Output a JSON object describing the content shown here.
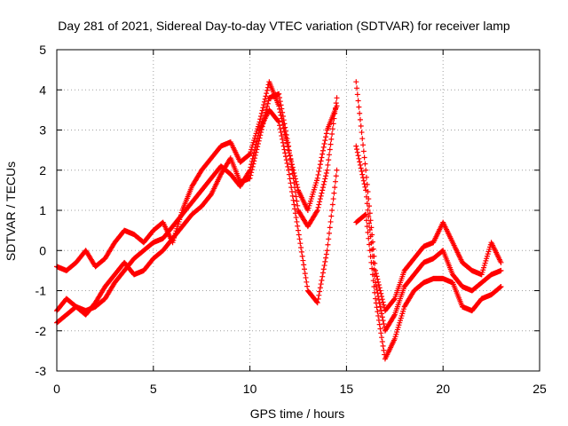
{
  "chart_data": {
    "type": "scatter",
    "title": "Day 281 of 2021, Sidereal Day-to-day VTEC variation (SDTVAR) for receiver lamp",
    "xlabel": "GPS time / hours",
    "ylabel": "SDTVAR / TECUs",
    "xlim": [
      0,
      25
    ],
    "ylim": [
      -3,
      5
    ],
    "xticks": [
      "0",
      "5",
      "10",
      "15",
      "20",
      "25"
    ],
    "yticks": [
      "-3",
      "-2",
      "-1",
      "0",
      "1",
      "2",
      "3",
      "4",
      "5"
    ],
    "grid": true,
    "marker": "+",
    "color": "#ff0000",
    "series": [
      {
        "x": [
          0.0,
          0.5,
          1.0,
          1.5,
          2.0,
          2.5,
          3.0,
          3.5,
          4.0,
          4.5,
          5.0,
          5.5,
          6.0,
          6.5,
          7.0,
          7.5,
          8.0,
          8.5,
          9.0,
          9.5,
          10.0,
          10.5,
          11.0,
          11.5,
          12.0,
          12.5,
          13.0,
          13.5,
          14.0,
          14.5
        ],
        "y": [
          -1.8,
          -1.6,
          -1.4,
          -1.5,
          -1.4,
          -1.2,
          -0.8,
          -0.5,
          -0.2,
          0.0,
          0.2,
          0.3,
          0.6,
          0.9,
          1.2,
          1.5,
          1.8,
          2.1,
          1.9,
          1.6,
          2.0,
          3.0,
          3.5,
          3.2,
          2.0,
          0.5,
          -1.0,
          -1.3,
          0.0,
          2.0
        ]
      },
      {
        "x": [
          0.0,
          0.5,
          1.0,
          1.5,
          2.0,
          2.5,
          3.0,
          3.5,
          4.0,
          4.5,
          5.0,
          5.5,
          6.0,
          6.5,
          7.0,
          7.5,
          8.0,
          8.5,
          9.0,
          9.5,
          10.0,
          10.5,
          11.0,
          11.5,
          12.0,
          12.5,
          13.0,
          13.5,
          14.0,
          14.5
        ],
        "y": [
          -1.5,
          -1.2,
          -1.4,
          -1.6,
          -1.3,
          -0.9,
          -0.6,
          -0.3,
          -0.6,
          -0.5,
          -0.2,
          0.0,
          0.3,
          0.6,
          0.9,
          1.1,
          1.4,
          1.9,
          2.3,
          1.7,
          1.8,
          2.8,
          3.8,
          3.9,
          2.6,
          1.0,
          0.6,
          1.0,
          2.0,
          3.8
        ]
      },
      {
        "x": [
          0.0,
          0.5,
          1.0,
          1.5,
          2.0,
          2.5,
          3.0,
          3.5,
          4.0,
          4.5,
          5.0,
          5.5,
          6.0,
          6.5,
          7.0,
          7.5,
          8.0,
          8.5,
          9.0,
          9.5,
          10.0,
          10.5,
          11.0,
          11.5,
          12.0,
          12.5,
          13.0,
          13.5,
          14.0,
          14.5
        ],
        "y": [
          -0.4,
          -0.5,
          -0.3,
          0.0,
          -0.4,
          -0.2,
          0.2,
          0.5,
          0.4,
          0.2,
          0.5,
          0.7,
          0.2,
          1.0,
          1.6,
          2.0,
          2.3,
          2.6,
          2.7,
          2.2,
          2.4,
          3.2,
          4.2,
          3.6,
          2.5,
          1.5,
          1.0,
          1.8,
          3.0,
          3.6
        ]
      },
      {
        "x": [
          15.5,
          16.0,
          16.5,
          17.0,
          17.5,
          18.0,
          18.5,
          19.0,
          19.5,
          20.0,
          20.5,
          21.0,
          21.5,
          22.0,
          22.5,
          23.0
        ],
        "y": [
          4.2,
          2.0,
          -0.5,
          -1.5,
          -1.2,
          -0.5,
          -0.2,
          0.1,
          0.2,
          0.7,
          0.2,
          -0.3,
          -0.5,
          -0.6,
          0.2,
          -0.3
        ]
      },
      {
        "x": [
          15.5,
          16.0,
          16.5,
          17.0,
          17.5,
          18.0,
          18.5,
          19.0,
          19.5,
          20.0,
          20.5,
          21.0,
          21.5,
          22.0,
          22.5,
          23.0
        ],
        "y": [
          2.6,
          1.5,
          -0.8,
          -2.0,
          -1.6,
          -0.9,
          -0.6,
          -0.3,
          -0.2,
          0.0,
          -0.6,
          -0.9,
          -1.0,
          -0.8,
          -0.6,
          -0.5
        ]
      },
      {
        "x": [
          15.5,
          16.0,
          16.5,
          17.0,
          17.5,
          18.0,
          18.5,
          19.0,
          19.5,
          20.0,
          20.5,
          21.0,
          21.5,
          22.0,
          22.5,
          23.0
        ],
        "y": [
          0.7,
          0.9,
          -1.2,
          -2.7,
          -2.2,
          -1.4,
          -1.0,
          -0.8,
          -0.7,
          -0.7,
          -0.8,
          -1.4,
          -1.5,
          -1.2,
          -1.1,
          -0.9
        ]
      }
    ]
  }
}
